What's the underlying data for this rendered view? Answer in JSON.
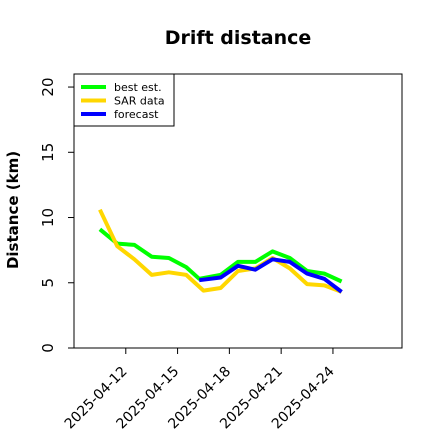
{
  "chart_data": {
    "type": "line",
    "title": "Drift distance",
    "xlabel": "",
    "ylabel": "Distance (km)",
    "x_ticks": [
      "2025-04-12",
      "2025-04-15",
      "2025-04-18",
      "2025-04-21",
      "2025-04-24"
    ],
    "y_ticks": [
      0,
      5,
      10,
      15,
      20
    ],
    "xlim": [
      "2025-04-09",
      "2025-04-28"
    ],
    "ylim": [
      0,
      21
    ],
    "grid": false,
    "legend": "top-left",
    "series": [
      {
        "name": "best est.",
        "color": "#00ff00",
        "points": [
          {
            "x": "2025-04-10 12:00",
            "y": 9.1
          },
          {
            "x": "2025-04-11 12:00",
            "y": 8.0
          },
          {
            "x": "2025-04-12 12:00",
            "y": 7.9
          },
          {
            "x": "2025-04-13 12:00",
            "y": 7.0
          },
          {
            "x": "2025-04-14 12:00",
            "y": 6.9
          },
          {
            "x": "2025-04-15 12:00",
            "y": 6.2
          },
          {
            "x": "2025-04-16 06:00",
            "y": 5.3
          },
          {
            "x": "2025-04-17 12:00",
            "y": 5.6
          },
          {
            "x": "2025-04-18 12:00",
            "y": 6.6
          },
          {
            "x": "2025-04-19 12:00",
            "y": 6.6
          },
          {
            "x": "2025-04-20 12:00",
            "y": 7.4
          },
          {
            "x": "2025-04-21 12:00",
            "y": 6.9
          },
          {
            "x": "2025-04-22 12:00",
            "y": 5.9
          },
          {
            "x": "2025-04-23 12:00",
            "y": 5.7
          },
          {
            "x": "2025-04-24 12:00",
            "y": 5.1
          }
        ]
      },
      {
        "name": "SAR data",
        "color": "#ffd700",
        "points": [
          {
            "x": "2025-04-10 12:00",
            "y": 10.6
          },
          {
            "x": "2025-04-11 12:00",
            "y": 7.8
          },
          {
            "x": "2025-04-12 12:00",
            "y": 6.8
          },
          {
            "x": "2025-04-13 12:00",
            "y": 5.6
          },
          {
            "x": "2025-04-14 12:00",
            "y": 5.8
          },
          {
            "x": "2025-04-15 12:00",
            "y": 5.6
          },
          {
            "x": "2025-04-16 12:00",
            "y": 4.4
          },
          {
            "x": "2025-04-17 12:00",
            "y": 4.6
          },
          {
            "x": "2025-04-18 12:00",
            "y": 5.9
          },
          {
            "x": "2025-04-19 12:00",
            "y": 6.1
          },
          {
            "x": "2025-04-20 12:00",
            "y": 6.9
          },
          {
            "x": "2025-04-21 12:00",
            "y": 6.1
          },
          {
            "x": "2025-04-22 12:00",
            "y": 4.9
          },
          {
            "x": "2025-04-23 12:00",
            "y": 4.8
          },
          {
            "x": "2025-04-24 12:00",
            "y": 4.3
          }
        ]
      },
      {
        "name": "forecast",
        "color": "#0000ff",
        "points": [
          {
            "x": "2025-04-16 06:00",
            "y": 5.2
          },
          {
            "x": "2025-04-17 12:00",
            "y": 5.4
          },
          {
            "x": "2025-04-18 12:00",
            "y": 6.3
          },
          {
            "x": "2025-04-19 12:00",
            "y": 6.0
          },
          {
            "x": "2025-04-20 12:00",
            "y": 6.8
          },
          {
            "x": "2025-04-21 12:00",
            "y": 6.6
          },
          {
            "x": "2025-04-22 12:00",
            "y": 5.7
          },
          {
            "x": "2025-04-23 12:00",
            "y": 5.3
          },
          {
            "x": "2025-04-24 12:00",
            "y": 4.3
          }
        ]
      }
    ]
  }
}
